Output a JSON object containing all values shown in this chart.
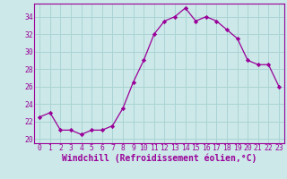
{
  "x": [
    0,
    1,
    2,
    3,
    4,
    5,
    6,
    7,
    8,
    9,
    10,
    11,
    12,
    13,
    14,
    15,
    16,
    17,
    18,
    19,
    20,
    21,
    22,
    23
  ],
  "y": [
    22.5,
    23.0,
    21.0,
    21.0,
    20.5,
    21.0,
    21.0,
    21.5,
    23.5,
    26.5,
    29.0,
    32.0,
    33.5,
    34.0,
    35.0,
    33.5,
    34.0,
    33.5,
    32.5,
    31.5,
    29.0,
    28.5,
    28.5,
    26.0
  ],
  "line_color": "#990099",
  "marker": "D",
  "marker_size": 2.2,
  "bg_color": "#cce8e8",
  "grid_color": "#aad4d4",
  "tick_color": "#990099",
  "spine_color": "#990099",
  "xlabel": "Windchill (Refroidissement éolien,°C)",
  "xlabel_fontsize": 7.0,
  "ylim": [
    19.5,
    35.5
  ],
  "yticks": [
    20,
    22,
    24,
    26,
    28,
    30,
    32,
    34
  ],
  "xticks": [
    0,
    1,
    2,
    3,
    4,
    5,
    6,
    7,
    8,
    9,
    10,
    11,
    12,
    13,
    14,
    15,
    16,
    17,
    18,
    19,
    20,
    21,
    22,
    23
  ],
  "tick_fontsize": 5.8,
  "xlim": [
    -0.5,
    23.5
  ]
}
